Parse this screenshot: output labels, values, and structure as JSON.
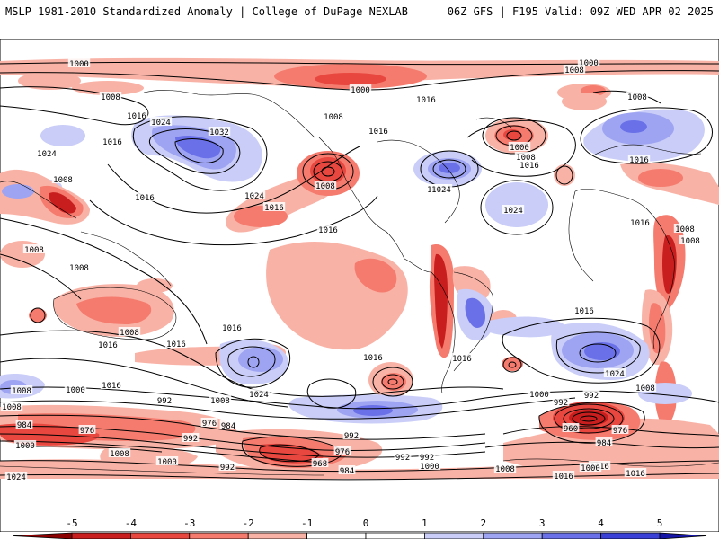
{
  "header": {
    "left": "MSLP 1981-2010 Standardized Anomaly | College of DuPage NEXLAB",
    "right": "06Z GFS | F195 Valid: 09Z WED APR 02 2025"
  },
  "colorbar": {
    "ticks": [
      "-5",
      "-4",
      "-3",
      "-2",
      "-1",
      "0",
      "1",
      "2",
      "3",
      "4",
      "5"
    ],
    "colors": [
      "#8b0000",
      "#c81e1e",
      "#e8473f",
      "#f47b6e",
      "#f9b2a6",
      "#ffffff",
      "#ffffff",
      "#c9cdf7",
      "#9ea4f2",
      "#6a71e8",
      "#3a40d6",
      "#1515a8"
    ]
  },
  "colors": {
    "neg_light": "#f9b2a6",
    "neg_mid": "#f47b6e",
    "neg_strong": "#e8473f",
    "neg_deep": "#c81e1e",
    "pos_light": "#c9cdf7",
    "pos_mid": "#9ea4f2",
    "pos_strong": "#6a71e8"
  },
  "isobar_labels": [
    "1000",
    "1000",
    "1008",
    "1000",
    "1008",
    "1016",
    "1008",
    "1008",
    "1016",
    "1024",
    "1016",
    "1024",
    "1032",
    "1024",
    "1008",
    "1024",
    "1016",
    "1016",
    "1000",
    "1008",
    "1016",
    "1016",
    "1008",
    "1016",
    "1024",
    "1024",
    "1016",
    "1008",
    "1016",
    "1008",
    "1016",
    "1008",
    "1008",
    "1016",
    "1016",
    "1016",
    "1008",
    "1016",
    "1000",
    "992",
    "1024",
    "1016",
    "1024",
    "992",
    "1008",
    "1016",
    "1008",
    "1008",
    "1000",
    "992",
    "1008",
    "1016",
    "984",
    "976",
    "984",
    "976",
    "992",
    "992",
    "984",
    "960",
    "976",
    "1000",
    "1008",
    "1000",
    "992",
    "968",
    "976",
    "984",
    "992",
    "1000",
    "992",
    "1008",
    "1016",
    "1016",
    "1024",
    "1000",
    "1016"
  ]
}
